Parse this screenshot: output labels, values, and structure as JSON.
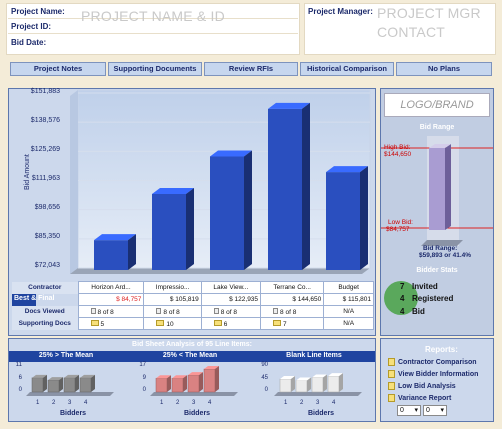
{
  "header": {
    "project_name_label": "Project Name:",
    "project_id_label": "Project ID:",
    "bid_date_label": "Bid Date:",
    "project_placeholder": "PROJECT NAME & ID",
    "manager_label": "Project Manager:",
    "manager_placeholder_line1": "PROJECT MGR",
    "manager_placeholder_line2": "CONTACT"
  },
  "nav": [
    "Project Notes",
    "Supporting Documents",
    "Review RFIs",
    "Historical Comparison",
    "No Plans"
  ],
  "chart_data": {
    "type": "bar",
    "ylabel": "Bid Amount",
    "ylim": [
      72043,
      151883
    ],
    "yticks": [
      "$151,883",
      "$138,576",
      "$125,269",
      "$111,963",
      "$98,656",
      "$85,350",
      "$72,043"
    ],
    "values": [
      84757,
      105819,
      122935,
      144650,
      115801
    ],
    "colors": [
      "#2a4fbf",
      "#2a4fbf",
      "#2a4fbf",
      "#2a4fbf",
      "#2a4fbf"
    ]
  },
  "bid_table": {
    "contractor_label": "Contractor",
    "best_final_label": "Best & Final",
    "docs_viewed_label": "Docs Viewed",
    "supporting_docs_label": "Supporting Docs",
    "contractors": [
      "Horizon Ard...",
      "Impressio...",
      "Lake View...",
      "Terrane Co...",
      "Budget"
    ],
    "amounts": [
      "$ 84,757",
      "$ 105,819",
      "$ 122,935",
      "$ 144,650",
      "$ 115,801"
    ],
    "docs_viewed": [
      "8 of 8",
      "8 of 8",
      "8 of 8",
      "8 of 8",
      "N/A"
    ],
    "supporting": [
      "5",
      "10",
      "6",
      "7",
      "N/A"
    ]
  },
  "logo": "LOGO/BRAND",
  "bid_range": {
    "title": "Bid Range",
    "high_label": "High Bid:",
    "high_value": "$144,650",
    "low_label": "Low Bid:",
    "low_value": "$84,757",
    "range_label": "Bid Range:",
    "range_value": "$59,893 or 41.4%"
  },
  "bidder_stats": {
    "title": "Bidder Stats",
    "invited_count": "7",
    "invited_label": "Invited",
    "registered_count": "4",
    "registered_label": "Registered",
    "bid_count": "4",
    "bid_label": "Bid"
  },
  "bid_sheet": {
    "title": "Bid Sheet Analysis of 95 Line Items:",
    "charts": [
      {
        "title": "25% > The Mean",
        "yticks": [
          "11",
          "6",
          "0"
        ],
        "values": [
          6,
          5,
          6,
          6
        ],
        "color": "#8a8a8a",
        "xlabel": "Bidders"
      },
      {
        "title": "25% < The Mean",
        "yticks": [
          "17",
          "9",
          "0"
        ],
        "values": [
          9,
          9,
          11,
          15
        ],
        "color": "#d98282",
        "xlabel": "Bidders"
      },
      {
        "title": "Blank Line Items",
        "yticks": [
          "90",
          "45",
          "0"
        ],
        "values": [
          45,
          40,
          50,
          55
        ],
        "color": "#ececec",
        "xlabel": "Bidders"
      }
    ],
    "x_categories": [
      "1",
      "2",
      "3",
      "4"
    ]
  },
  "reports": {
    "title": "Reports:",
    "items": [
      "Contractor Comparison",
      "View Bidder Information",
      "Low Bid Analysis",
      "Variance Report"
    ],
    "select1": "0",
    "select2": "0"
  }
}
